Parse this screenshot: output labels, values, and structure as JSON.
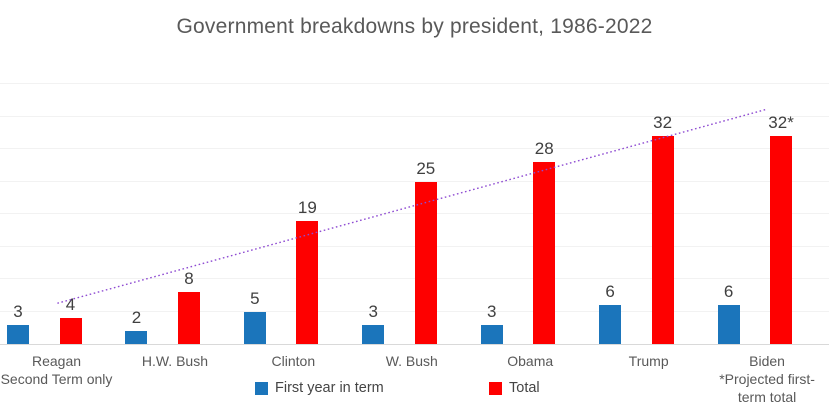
{
  "chart_data": {
    "type": "bar",
    "title": "Government breakdowns by president, 1986-2022",
    "categories": [
      "Reagan",
      "H.W. Bush",
      "Clinton",
      "W. Bush",
      "Obama",
      "Trump",
      "Biden"
    ],
    "category_sublabels": [
      [
        "Second Term only"
      ],
      [],
      [],
      [],
      [],
      [],
      [
        "*Projected first-",
        "term total"
      ]
    ],
    "series": [
      {
        "name": "First year in term",
        "color": "#1B75BB",
        "values": [
          3,
          2,
          5,
          3,
          3,
          6,
          6
        ],
        "labels": [
          "3",
          "2",
          "5",
          "3",
          "3",
          "6",
          "6"
        ]
      },
      {
        "name": "Total",
        "color": "#FE0000",
        "values": [
          4,
          8,
          19,
          25,
          28,
          32,
          32
        ],
        "labels": [
          "4",
          "8",
          "19",
          "25",
          "28",
          "32",
          "32*"
        ]
      }
    ],
    "xlabel": "",
    "ylabel": "",
    "ylim": [
      0,
      40
    ],
    "gridline_step": 5,
    "grid": "horizontal-only, faint, no y tick labels",
    "legend_position": "bottom",
    "trendline": {
      "on_series": "Total",
      "type": "linear",
      "style": "dotted",
      "color": "#8E4BD2",
      "start_value": 6.3,
      "end_value": 36.3
    },
    "style_colors": {
      "gridline": "#F2F2F2",
      "axis_line": "#D9D9D9",
      "title_text": "#595959",
      "value_label_text": "#404040",
      "category_text": "#595959",
      "legend_text": "#454545"
    }
  }
}
